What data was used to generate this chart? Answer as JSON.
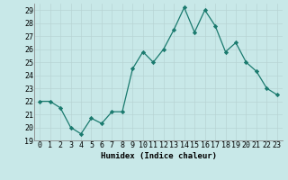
{
  "x": [
    0,
    1,
    2,
    3,
    4,
    5,
    6,
    7,
    8,
    9,
    10,
    11,
    12,
    13,
    14,
    15,
    16,
    17,
    18,
    19,
    20,
    21,
    22,
    23
  ],
  "y": [
    22,
    22,
    21.5,
    20,
    19.5,
    20.7,
    20.3,
    21.2,
    21.2,
    24.5,
    25.8,
    25.0,
    26.0,
    27.5,
    29.2,
    27.3,
    29.0,
    27.8,
    25.8,
    26.5,
    25.0,
    24.3,
    23.0,
    22.5
  ],
  "xlabel": "Humidex (Indice chaleur)",
  "xlim": [
    -0.5,
    23.5
  ],
  "ylim": [
    19,
    29.5
  ],
  "yticks": [
    19,
    20,
    21,
    22,
    23,
    24,
    25,
    26,
    27,
    28,
    29
  ],
  "xticks": [
    0,
    1,
    2,
    3,
    4,
    5,
    6,
    7,
    8,
    9,
    10,
    11,
    12,
    13,
    14,
    15,
    16,
    17,
    18,
    19,
    20,
    21,
    22,
    23
  ],
  "line_color": "#1a7a6e",
  "marker_color": "#1a7a6e",
  "bg_color": "#c8e8e8",
  "grid_color": "#b8d4d4",
  "label_fontsize": 6.5,
  "tick_fontsize": 6,
  "spine_color": "#888888"
}
